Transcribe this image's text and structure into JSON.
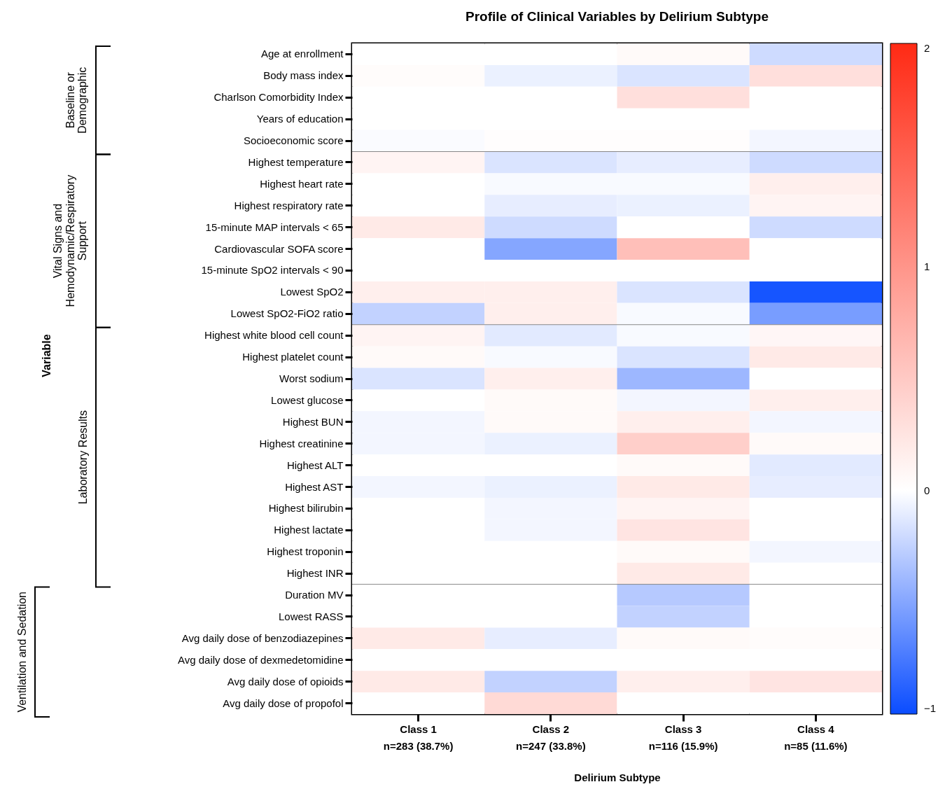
{
  "chart_data": {
    "type": "heatmap",
    "title": "Profile of Clinical Variables by Delirium Subtype",
    "xlabel": "Delirium Subtype",
    "categories": [
      "Class 1\nn=283 (38.7%)",
      "Class 2\nn=247 (33.8%)",
      "Class 3\nn=116 (15.9%)",
      "Class 4\nn=85 (11.6%)"
    ],
    "y_categories": [
      "Age at enrollment",
      "Body mass index",
      "Charlson Comorbidity Index",
      "Years of education",
      "Socioeconomic score",
      "Highest temperature",
      "Highest heart rate",
      "Highest respiratory rate",
      "15-minute MAP intervals < 65",
      "Cardiovascular SOFA score",
      "15-minute SpO2 intervals < 90",
      "Lowest SpO2",
      "Lowest SpO2-FiO2 ratio",
      "Highest white blood cell count",
      "Highest platelet count",
      "Worst sodium",
      "Lowest glucose",
      "Highest BUN",
      "Highest creatinine",
      "Highest ALT",
      "Highest AST",
      "Highest bilirubin",
      "Highest lactate",
      "Highest troponin",
      "Highest INR",
      "Duration MV",
      "Lowest RASS",
      "Avg daily dose of benzodiazepines",
      "Avg daily dose of dexmedetomidine",
      "Avg daily dose of opioids",
      "Avg daily dose of propofol"
    ],
    "cells": [
      [
        0,
        0,
        0.05,
        -0.2
      ],
      [
        0.03,
        -0.08,
        -0.15,
        0.3
      ],
      [
        0,
        0,
        0.3,
        0
      ],
      [
        0,
        0,
        0,
        0
      ],
      [
        -0.02,
        0.02,
        0.02,
        -0.05
      ],
      [
        0.1,
        -0.15,
        -0.1,
        -0.2
      ],
      [
        0,
        -0.03,
        -0.03,
        0.15
      ],
      [
        0,
        -0.1,
        -0.08,
        0.1
      ],
      [
        0.2,
        -0.2,
        0,
        -0.2
      ],
      [
        0,
        -0.5,
        0.6,
        0
      ],
      [
        0,
        0,
        0,
        0
      ],
      [
        0.15,
        0.15,
        -0.15,
        -0.95
      ],
      [
        -0.25,
        0.15,
        -0.03,
        -0.55
      ],
      [
        0.1,
        -0.12,
        -0.03,
        0.08
      ],
      [
        0.05,
        -0.03,
        -0.15,
        0.2
      ],
      [
        -0.15,
        0.15,
        -0.4,
        0
      ],
      [
        0,
        0.05,
        -0.05,
        0.15
      ],
      [
        -0.05,
        0.05,
        0.15,
        -0.05
      ],
      [
        -0.05,
        -0.08,
        0.45,
        0.05
      ],
      [
        0,
        0,
        0.05,
        -0.12
      ],
      [
        -0.05,
        -0.08,
        0.2,
        -0.1
      ],
      [
        0,
        -0.05,
        0.1,
        0
      ],
      [
        0,
        -0.05,
        0.25,
        0
      ],
      [
        0,
        0,
        0.05,
        -0.05
      ],
      [
        0,
        0,
        0.2,
        0
      ],
      [
        0,
        0,
        -0.3,
        0
      ],
      [
        0,
        0,
        -0.25,
        0
      ],
      [
        0.2,
        -0.1,
        0.05,
        0.03
      ],
      [
        0,
        0,
        0,
        0
      ],
      [
        0.2,
        -0.25,
        0.15,
        0.25
      ],
      [
        0,
        0.35,
        0,
        0
      ]
    ],
    "clim": [
      -1,
      2
    ],
    "cticks": [
      -1,
      0,
      1,
      2
    ],
    "annotations": [
      "Baseline or\nDemographic",
      "Vital Signs and\nHemodynamic/Respiratory\nSupport",
      "Laboratory Results",
      "Ventilation and Sedation",
      "Variable"
    ]
  }
}
